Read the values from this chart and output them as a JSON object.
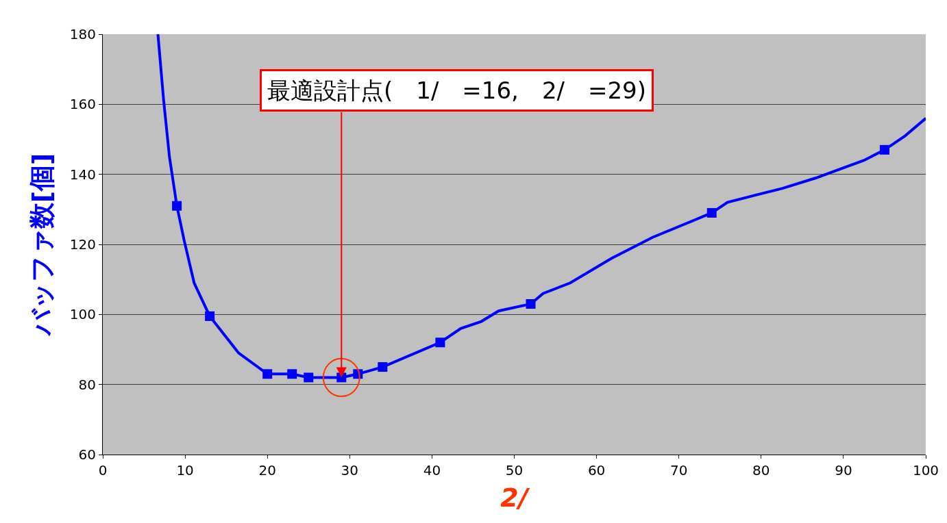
{
  "chart_data": {
    "type": "line",
    "xlabel": "2/",
    "ylabel": "バッファ数[個]",
    "xlim": [
      0,
      100
    ],
    "xticks": [
      0,
      10,
      20,
      30,
      40,
      50,
      60,
      70,
      80,
      90,
      100
    ],
    "ylim": [
      60,
      180
    ],
    "yticks": [
      60,
      80,
      100,
      120,
      140,
      160,
      180
    ],
    "grid": "y",
    "series": [
      {
        "marker": "none",
        "color": "#0000ff",
        "x": [
          6.7,
          7.4,
          8.1,
          9,
          9.9,
          11.1,
          13,
          14.5,
          16.5,
          20,
          23,
          25,
          29,
          31,
          34,
          41,
          43.5,
          46,
          48.1,
          52,
          53.5,
          56.8,
          61.8,
          66.8,
          74,
          75.9,
          79.2,
          82.6,
          86.7,
          92.5,
          95,
          97.5,
          100
        ],
        "values": [
          180,
          161,
          145,
          131,
          121,
          109,
          99.5,
          95,
          89,
          83,
          83,
          82,
          82,
          83,
          85,
          92,
          96,
          98,
          101,
          103,
          106,
          109,
          116,
          122,
          129,
          132,
          134,
          136,
          139,
          144,
          147,
          151,
          156
        ]
      },
      {
        "type": "scatter",
        "marker": "square",
        "color": "#0000ff",
        "x": [
          9,
          13,
          20,
          23,
          25,
          29,
          31,
          34,
          41,
          52,
          74,
          95
        ],
        "values": [
          131,
          99.5,
          83,
          83,
          82,
          82,
          83,
          85,
          92,
          103,
          129,
          147
        ]
      }
    ],
    "annotations": [
      {
        "text": "最適設計点(　1/　=16,　2/　=29)",
        "x": 29,
        "y": 82
      }
    ]
  }
}
